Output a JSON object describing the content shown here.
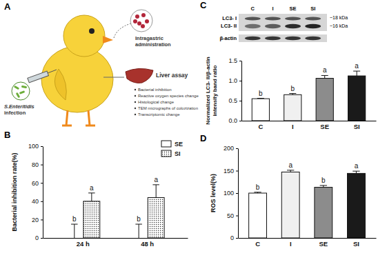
{
  "chart_data": [
    {
      "type": "bar",
      "title": "B",
      "categories": [
        "24 h",
        "48 h"
      ],
      "series": [
        {
          "name": "SE",
          "color": "#ffffff",
          "values": [
            0,
            0
          ],
          "errors": [
            15,
            15
          ],
          "annotations": [
            "b",
            "b"
          ]
        },
        {
          "name": "SI",
          "color": "#ffffff",
          "values": [
            40,
            44
          ],
          "errors": [
            9,
            14
          ],
          "annotations": [
            "a",
            "a"
          ]
        }
      ],
      "ylabel": "Bacterial inhibition rate(%)",
      "ylim": [
        0,
        100
      ],
      "yticks": [
        0,
        20,
        40,
        60,
        80,
        100
      ],
      "legend": "top-right"
    },
    {
      "type": "bar",
      "title": "C",
      "blot": {
        "lanes": [
          "C",
          "I",
          "SE",
          "SI"
        ],
        "bands": [
          "LC3- I",
          "LC3- II",
          "β-actin"
        ],
        "sizes": [
          "~18 kDa",
          "~16 kDa"
        ]
      },
      "categories": [
        "C",
        "I",
        "SE",
        "SI"
      ],
      "values": [
        0.55,
        0.65,
        1.06,
        1.12
      ],
      "errors": [
        0.01,
        0.03,
        0.07,
        0.12
      ],
      "annotations": [
        "b",
        "b",
        "a",
        "a"
      ],
      "colors": [
        "#ffffff",
        "#f0f0f0",
        "#8c8c8c",
        "#1a1a1a"
      ],
      "ylabel": [
        "Normalized LC3- II/β-actin",
        "intensity band ratio"
      ],
      "ylim": [
        0,
        1.5
      ],
      "yticks": [
        {
          "value": 0,
          "label": "0.0"
        },
        0.5,
        {
          "value": 1,
          "label": "1.0"
        },
        1.5
      ]
    },
    {
      "type": "bar",
      "title": "D",
      "categories": [
        "C",
        "I",
        "SE",
        "SI"
      ],
      "values": [
        100,
        147,
        113,
        144
      ],
      "errors": [
        2,
        4,
        4,
        5
      ],
      "annotations": [
        "b",
        "a",
        "b",
        "a"
      ],
      "colors": [
        "#ffffff",
        "#f0f0f0",
        "#8c8c8c",
        "#1a1a1a"
      ],
      "ylabel": "ROS level(%)",
      "ylim": [
        0,
        200
      ],
      "yticks": [
        0,
        50,
        100,
        150,
        200
      ]
    }
  ],
  "diagram": {
    "title": "A",
    "intragastric": [
      "Intragastric",
      "administration"
    ],
    "infection": [
      "S.Enteritidis",
      "infection"
    ],
    "liver": "Liver assay",
    "assays": [
      "Bacterial inhibition",
      "Reactive oxygen species change",
      "Histological change",
      "TEM micrographs of colozization",
      "Transcriptomic change"
    ]
  }
}
